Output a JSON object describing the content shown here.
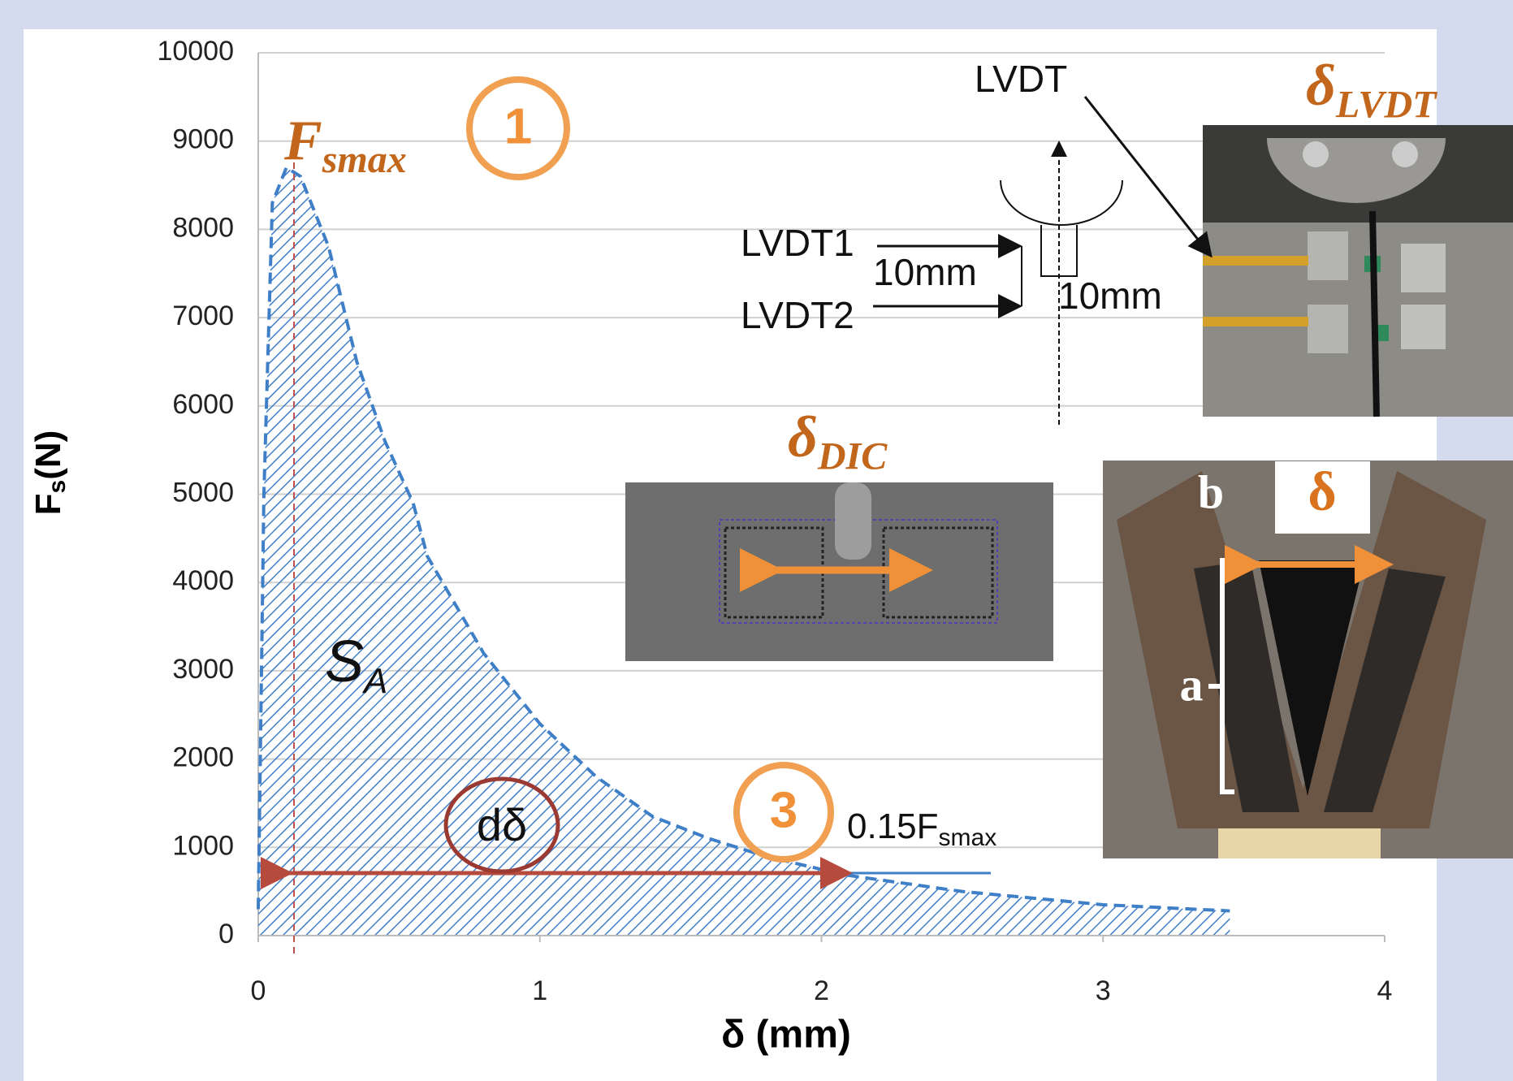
{
  "chart_data": {
    "type": "area",
    "x_label": "δ (mm)",
    "y_label": {
      "text": "F",
      "sub": "s",
      "rest": "(N)"
    },
    "x": [
      0.0,
      0.02,
      0.05,
      0.1,
      0.15,
      0.25,
      0.35,
      0.45,
      0.55,
      0.6,
      0.8,
      1.0,
      1.2,
      1.4,
      1.6,
      1.8,
      2.0,
      2.1,
      2.5,
      3.0,
      3.45
    ],
    "values": [
      300,
      5000,
      8300,
      8700,
      8600,
      7800,
      6500,
      5600,
      4900,
      4300,
      3200,
      2400,
      1800,
      1350,
      1100,
      900,
      750,
      680,
      500,
      350,
      280
    ],
    "color": "#3f7fc8",
    "xlim": [
      0,
      4
    ],
    "xticks": [
      0,
      1,
      2,
      3,
      4
    ],
    "ylim": [
      0,
      10000
    ],
    "yticks": [
      0,
      1000,
      2000,
      3000,
      4000,
      5000,
      6000,
      7000,
      8000,
      9000,
      10000
    ],
    "grid": true,
    "annotations": {
      "f_smax": {
        "text": "F",
        "sub": "smax"
      },
      "marker_1": "1",
      "marker_3": "3",
      "s_a": {
        "text": "S",
        "sub": "A"
      },
      "d_delta": "dδ",
      "threshold": {
        "text": "0.15F",
        "sub": "smax"
      },
      "lvdt": "LVDT",
      "delta_lvdt": {
        "text": "δ",
        "sub": "LVDT"
      },
      "lvdt1": "LVDT1",
      "lvdt2": "LVDT2",
      "spacing_1": "10mm",
      "spacing_2": "10mm",
      "delta_dic": {
        "text": "δ",
        "sub": "DIC"
      },
      "delta": "δ",
      "b": "b",
      "a": "a"
    }
  }
}
